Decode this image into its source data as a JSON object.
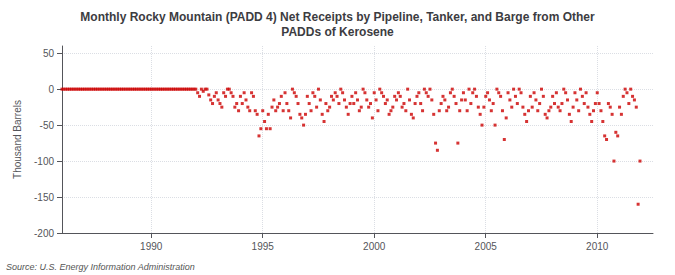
{
  "chart_data": {
    "type": "scatter",
    "title": "Monthly Rocky Mountain (PADD 4) Net Receipts by Pipeline, Tanker, and Barge from Other\nPADDs of Kerosene",
    "ylabel": "Thousand Barrels",
    "annotations": [
      "Source: U.S. Energy Information Administration"
    ],
    "color": "#cc0000",
    "marker": "square",
    "grid": true,
    "xlim": [
      1986.0,
      2012.5
    ],
    "ylim": [
      -200,
      60
    ],
    "yticks": [
      -200,
      -150,
      -100,
      -50,
      0,
      50
    ],
    "xticks": [
      1990,
      1995,
      2000,
      2005,
      2010
    ],
    "x": [
      1986.0,
      1986.083,
      1986.167,
      1986.25,
      1986.333,
      1986.417,
      1986.5,
      1986.583,
      1986.667,
      1986.75,
      1986.833,
      1986.917,
      1987.0,
      1987.083,
      1987.167,
      1987.25,
      1987.333,
      1987.417,
      1987.5,
      1987.583,
      1987.667,
      1987.75,
      1987.833,
      1987.917,
      1988.0,
      1988.083,
      1988.167,
      1988.25,
      1988.333,
      1988.417,
      1988.5,
      1988.583,
      1988.667,
      1988.75,
      1988.833,
      1988.917,
      1989.0,
      1989.083,
      1989.167,
      1989.25,
      1989.333,
      1989.417,
      1989.5,
      1989.583,
      1989.667,
      1989.75,
      1989.833,
      1989.917,
      1990.0,
      1990.083,
      1990.167,
      1990.25,
      1990.333,
      1990.417,
      1990.5,
      1990.583,
      1990.667,
      1990.75,
      1990.833,
      1990.917,
      1991.0,
      1991.083,
      1991.167,
      1991.25,
      1991.333,
      1991.417,
      1991.5,
      1991.583,
      1991.667,
      1991.75,
      1991.833,
      1991.917,
      1992.0,
      1992.083,
      1992.167,
      1992.25,
      1992.333,
      1992.417,
      1992.5,
      1992.583,
      1992.667,
      1992.75,
      1992.833,
      1992.917,
      1993.0,
      1993.083,
      1993.167,
      1993.25,
      1993.333,
      1993.417,
      1993.5,
      1993.583,
      1993.667,
      1993.75,
      1993.833,
      1993.917,
      1994.0,
      1994.083,
      1994.167,
      1994.25,
      1994.333,
      1994.417,
      1994.5,
      1994.583,
      1994.667,
      1994.75,
      1994.833,
      1994.917,
      1995.0,
      1995.083,
      1995.167,
      1995.25,
      1995.333,
      1995.417,
      1995.5,
      1995.583,
      1995.667,
      1995.75,
      1995.833,
      1995.917,
      1996.0,
      1996.083,
      1996.167,
      1996.25,
      1996.333,
      1996.417,
      1996.5,
      1996.583,
      1996.667,
      1996.75,
      1996.833,
      1996.917,
      1997.0,
      1997.083,
      1997.167,
      1997.25,
      1997.333,
      1997.417,
      1997.5,
      1997.583,
      1997.667,
      1997.75,
      1997.833,
      1997.917,
      1998.0,
      1998.083,
      1998.167,
      1998.25,
      1998.333,
      1998.417,
      1998.5,
      1998.583,
      1998.667,
      1998.75,
      1998.833,
      1998.917,
      1999.0,
      1999.083,
      1999.167,
      1999.25,
      1999.333,
      1999.417,
      1999.5,
      1999.583,
      1999.667,
      1999.75,
      1999.833,
      1999.917,
      2000.0,
      2000.083,
      2000.167,
      2000.25,
      2000.333,
      2000.417,
      2000.5,
      2000.583,
      2000.667,
      2000.75,
      2000.833,
      2000.917,
      2001.0,
      2001.083,
      2001.167,
      2001.25,
      2001.333,
      2001.417,
      2001.5,
      2001.583,
      2001.667,
      2001.75,
      2001.833,
      2001.917,
      2002.0,
      2002.083,
      2002.167,
      2002.25,
      2002.333,
      2002.417,
      2002.5,
      2002.583,
      2002.667,
      2002.75,
      2002.833,
      2002.917,
      2003.0,
      2003.083,
      2003.167,
      2003.25,
      2003.333,
      2003.417,
      2003.5,
      2003.583,
      2003.667,
      2003.75,
      2003.833,
      2003.917,
      2004.0,
      2004.083,
      2004.167,
      2004.25,
      2004.333,
      2004.417,
      2004.5,
      2004.583,
      2004.667,
      2004.75,
      2004.833,
      2004.917,
      2005.0,
      2005.083,
      2005.167,
      2005.25,
      2005.333,
      2005.417,
      2005.5,
      2005.583,
      2005.667,
      2005.75,
      2005.833,
      2005.917,
      2006.0,
      2006.083,
      2006.167,
      2006.25,
      2006.333,
      2006.417,
      2006.5,
      2006.583,
      2006.667,
      2006.75,
      2006.833,
      2006.917,
      2007.0,
      2007.083,
      2007.167,
      2007.25,
      2007.333,
      2007.417,
      2007.5,
      2007.583,
      2007.667,
      2007.75,
      2007.833,
      2007.917,
      2008.0,
      2008.083,
      2008.167,
      2008.25,
      2008.333,
      2008.417,
      2008.5,
      2008.583,
      2008.667,
      2008.75,
      2008.833,
      2008.917,
      2009.0,
      2009.083,
      2009.167,
      2009.25,
      2009.333,
      2009.417,
      2009.5,
      2009.583,
      2009.667,
      2009.75,
      2009.833,
      2009.917,
      2010.0,
      2010.083,
      2010.167,
      2010.25,
      2010.333,
      2010.417,
      2010.5,
      2010.583,
      2010.667,
      2010.75,
      2010.833,
      2010.917,
      2011.0,
      2011.083,
      2011.167,
      2011.25,
      2011.333,
      2011.417,
      2011.5,
      2011.583,
      2011.667,
      2011.75,
      2011.833,
      2011.917
    ],
    "values": [
      0,
      0,
      0,
      0,
      0,
      0,
      0,
      0,
      0,
      0,
      0,
      0,
      0,
      0,
      0,
      0,
      0,
      0,
      0,
      0,
      0,
      0,
      0,
      0,
      0,
      0,
      0,
      0,
      0,
      0,
      0,
      0,
      0,
      0,
      0,
      0,
      0,
      0,
      0,
      0,
      0,
      0,
      0,
      0,
      0,
      0,
      0,
      0,
      0,
      0,
      0,
      0,
      0,
      0,
      0,
      0,
      0,
      0,
      0,
      0,
      0,
      0,
      0,
      0,
      0,
      0,
      0,
      0,
      0,
      0,
      0,
      0,
      0,
      -5,
      -10,
      0,
      -3,
      0,
      0,
      -8,
      -15,
      -20,
      -10,
      -5,
      -15,
      -20,
      -25,
      -5,
      -10,
      0,
      0,
      -5,
      -10,
      -25,
      -20,
      -30,
      -10,
      -20,
      -5,
      -15,
      -25,
      -30,
      -5,
      -10,
      -30,
      -35,
      -65,
      -55,
      -30,
      -45,
      -55,
      -35,
      -55,
      -25,
      -15,
      -30,
      -25,
      -20,
      -10,
      -30,
      -5,
      -20,
      -30,
      -40,
      0,
      -5,
      -10,
      -20,
      -35,
      -40,
      -50,
      -35,
      -10,
      -20,
      -30,
      -5,
      -10,
      -25,
      0,
      -15,
      -35,
      -45,
      -20,
      -30,
      -25,
      -10,
      -15,
      -5,
      -10,
      -20,
      0,
      -5,
      -15,
      -25,
      -35,
      -20,
      -10,
      -20,
      -5,
      -15,
      -30,
      -25,
      0,
      -5,
      -15,
      -25,
      -20,
      -40,
      -5,
      -15,
      -30,
      0,
      -5,
      -10,
      -20,
      -15,
      -35,
      -30,
      -25,
      -10,
      -15,
      -5,
      -10,
      -25,
      -20,
      -30,
      0,
      -15,
      -35,
      -40,
      -20,
      -10,
      -5,
      -20,
      -30,
      0,
      -5,
      -10,
      0,
      -15,
      -35,
      -75,
      -85,
      -30,
      -20,
      -10,
      -15,
      -30,
      -25,
      -5,
      0,
      -10,
      -20,
      -75,
      -30,
      -15,
      -5,
      -15,
      -30,
      0,
      -20,
      -5,
      0,
      -10,
      -25,
      -35,
      -50,
      -25,
      -10,
      -5,
      -15,
      -30,
      -20,
      -50,
      0,
      -5,
      -10,
      -30,
      -70,
      -40,
      -5,
      -15,
      -25,
      0,
      -10,
      -20,
      0,
      -5,
      -25,
      -35,
      -45,
      -30,
      -10,
      -25,
      -5,
      -15,
      -30,
      -20,
      0,
      -10,
      -35,
      -40,
      -30,
      -25,
      -10,
      -20,
      -5,
      -25,
      -30,
      -20,
      0,
      -5,
      -15,
      -35,
      -45,
      -25,
      -5,
      -15,
      -30,
      0,
      -10,
      -20,
      -5,
      -25,
      -35,
      -45,
      -30,
      -20,
      -5,
      -20,
      -30,
      -45,
      -65,
      -70,
      -20,
      -25,
      -35,
      -100,
      -60,
      -65,
      -25,
      -35,
      -10,
      0,
      -5,
      -20,
      0,
      -10,
      -15,
      -25,
      -160,
      -100
    ]
  }
}
